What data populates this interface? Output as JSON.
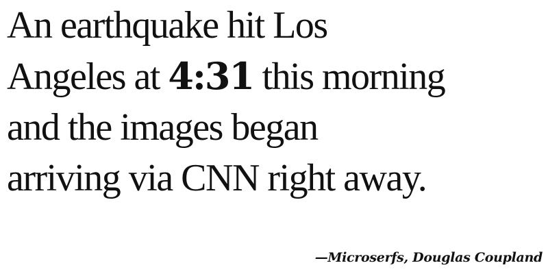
{
  "quote": {
    "line1": "An earthquake hit Los",
    "line2_before": "Angeles at ",
    "time": "4:31",
    "line2_after": " this morning",
    "line3": "and the images began",
    "line4": "arriving via CNN right away."
  },
  "attribution": "—Microserfs, Douglas Coupland"
}
